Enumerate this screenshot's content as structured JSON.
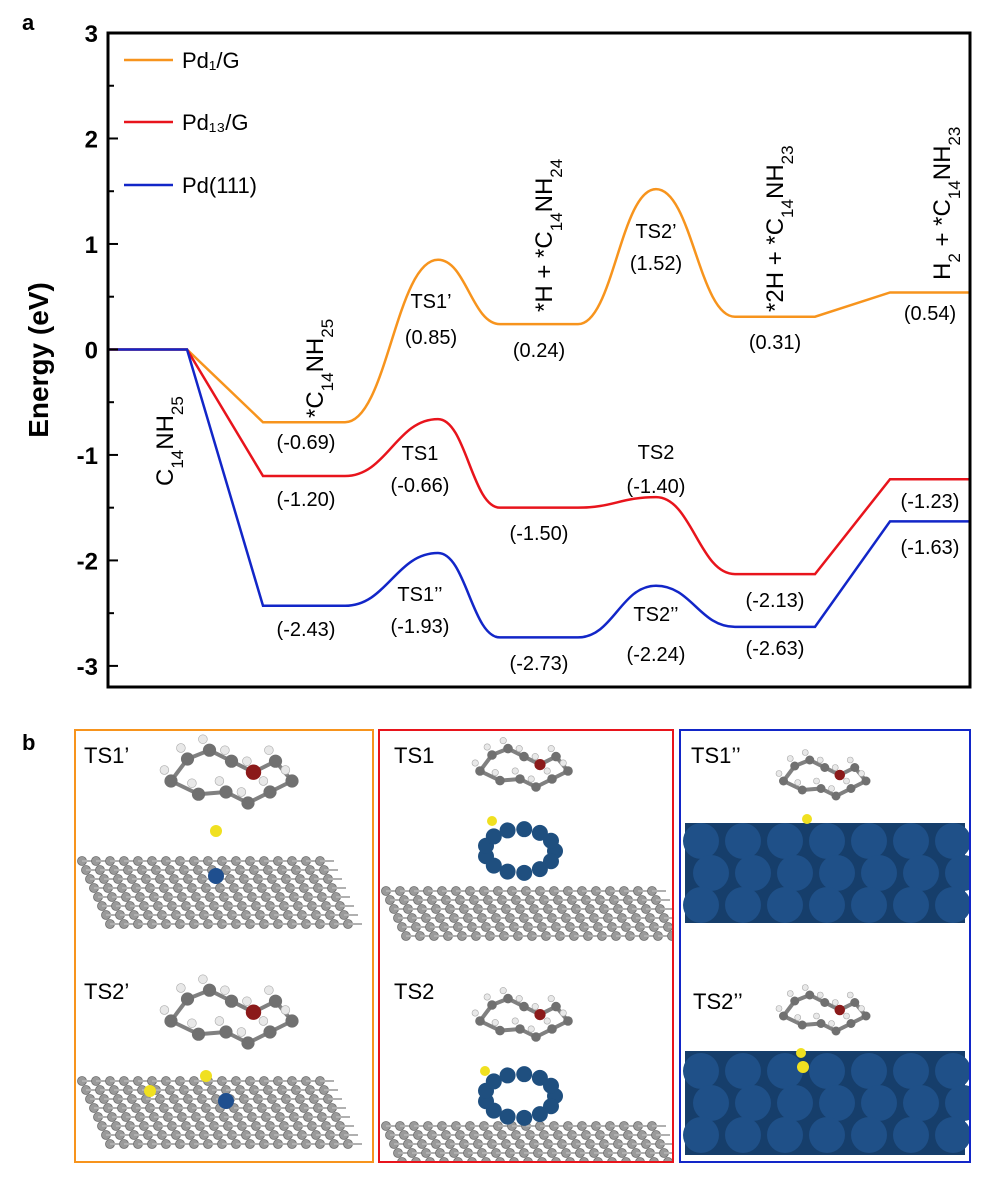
{
  "panel_a_label": "a",
  "panel_b_label": "b",
  "colors": {
    "pd1g": "#f7941d",
    "pd13g": "#e8141c",
    "pd111": "#1226c8"
  },
  "chart_data": {
    "type": "line",
    "ylabel": "Energy (eV)",
    "ylim": [
      -3.2,
      3
    ],
    "yticks": [
      -3,
      -2,
      -1,
      0,
      1,
      2,
      3
    ],
    "legend": {
      "placement": "top-left"
    },
    "species_labels": [
      "C14NH25",
      "*C14NH25",
      "*H + *C14NH24",
      "*2H + *C14NH23",
      "H2 + *C14NH23"
    ],
    "series": [
      {
        "name": "Pd₁/G",
        "color": "#f7941d",
        "stages": [
          {
            "kind": "level",
            "value": 0.0
          },
          {
            "kind": "level",
            "value": -0.69,
            "label": "(-0.69)"
          },
          {
            "kind": "ts",
            "value": 0.85,
            "name": "TS1’",
            "label": "(0.85)"
          },
          {
            "kind": "level",
            "value": 0.24,
            "label": "(0.24)"
          },
          {
            "kind": "ts",
            "value": 1.52,
            "name": "TS2’",
            "label": "(1.52)"
          },
          {
            "kind": "level",
            "value": 0.31,
            "label": "(0.31)"
          },
          {
            "kind": "level",
            "value": 0.54,
            "label": "(0.54)"
          }
        ]
      },
      {
        "name": "Pd₁₃/G",
        "color": "#e8141c",
        "stages": [
          {
            "kind": "level",
            "value": 0.0
          },
          {
            "kind": "level",
            "value": -1.2,
            "label": "(-1.20)"
          },
          {
            "kind": "ts",
            "value": -0.66,
            "name": "TS1",
            "label": "(-0.66)"
          },
          {
            "kind": "level",
            "value": -1.5,
            "label": "(-1.50)"
          },
          {
            "kind": "ts",
            "value": -1.4,
            "name": "TS2",
            "label": "(-1.40)"
          },
          {
            "kind": "level",
            "value": -2.13,
            "label": "(-2.13)"
          },
          {
            "kind": "level",
            "value": -1.23,
            "label": "(-1.23)"
          }
        ]
      },
      {
        "name": "Pd(111)",
        "color": "#1226c8",
        "stages": [
          {
            "kind": "level",
            "value": 0.0
          },
          {
            "kind": "level",
            "value": -2.43,
            "label": "(-2.43)"
          },
          {
            "kind": "ts",
            "value": -1.93,
            "name": "TS1’’",
            "label": "(-1.93)"
          },
          {
            "kind": "level",
            "value": -2.73,
            "label": "(-2.73)"
          },
          {
            "kind": "ts",
            "value": -2.24,
            "name": "TS2’’",
            "label": "(-2.24)"
          },
          {
            "kind": "level",
            "value": -2.63,
            "label": "(-2.63)"
          },
          {
            "kind": "level",
            "value": -1.63,
            "label": "(-1.63)"
          }
        ]
      }
    ]
  },
  "panel_b": {
    "pd1g_titles": [
      "TS1’",
      "TS2’"
    ],
    "pd13g_titles": [
      "TS1",
      "TS2"
    ],
    "pd111_titles": [
      "TS1’’",
      "TS2’’"
    ]
  }
}
